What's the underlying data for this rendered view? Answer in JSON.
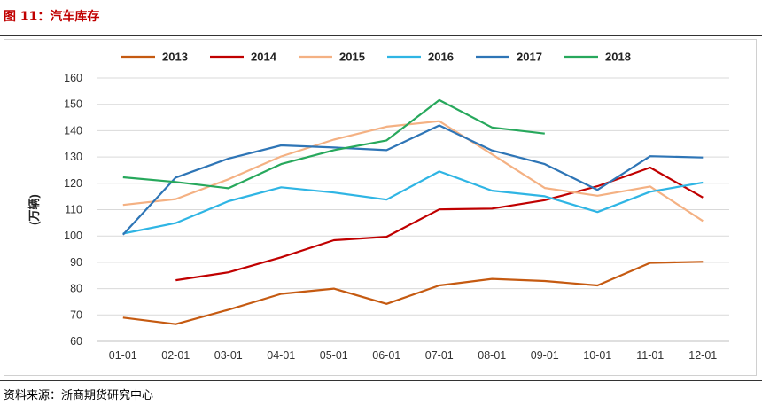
{
  "header": {
    "title": "图 11：汽车库存"
  },
  "footer": {
    "source": "资料来源：浙商期货研究中心"
  },
  "chart_data": {
    "type": "line",
    "title": "",
    "xlabel": "",
    "ylabel": "(万辆)",
    "categories": [
      "01-01",
      "02-01",
      "03-01",
      "04-01",
      "05-01",
      "06-01",
      "07-01",
      "08-01",
      "09-01",
      "10-01",
      "11-01",
      "12-01"
    ],
    "ylim": [
      60,
      160
    ],
    "yticks": [
      60,
      70,
      80,
      90,
      100,
      110,
      120,
      130,
      140,
      150,
      160
    ],
    "grid": true,
    "legend_position": "top",
    "series": [
      {
        "name": "2013",
        "color": "#c55a11",
        "values": [
          69,
          66.5,
          72,
          78,
          80,
          74.2,
          81.2,
          83.7,
          82.9,
          81.2,
          89.8,
          90.2
        ]
      },
      {
        "name": "2014",
        "color": "#c00000",
        "values": [
          null,
          83.2,
          86.2,
          91.9,
          98.4,
          99.7,
          110.1,
          110.4,
          113.6,
          118.9,
          126,
          114.6
        ]
      },
      {
        "name": "2015",
        "color": "#f4b183",
        "values": [
          111.8,
          114,
          121.5,
          130.2,
          136.6,
          141.5,
          143.6,
          131,
          118.2,
          115.3,
          118.8,
          105.7
        ]
      },
      {
        "name": "2016",
        "color": "#2fb5e4",
        "values": [
          100.9,
          104.9,
          113.2,
          118.5,
          116.5,
          113.8,
          124.5,
          117.2,
          115.1,
          109.1,
          116.8,
          120.3
        ]
      },
      {
        "name": "2017",
        "color": "#2e75b6",
        "values": [
          100.5,
          122.2,
          129.4,
          134.4,
          133.6,
          132.6,
          142,
          132.5,
          127.3,
          117.5,
          130.3,
          129.8
        ]
      },
      {
        "name": "2018",
        "color": "#27a85c",
        "values": [
          122.3,
          120.5,
          118.1,
          127.3,
          132.6,
          136.3,
          151.6,
          141.2,
          138.9,
          null,
          null,
          null
        ]
      }
    ]
  }
}
